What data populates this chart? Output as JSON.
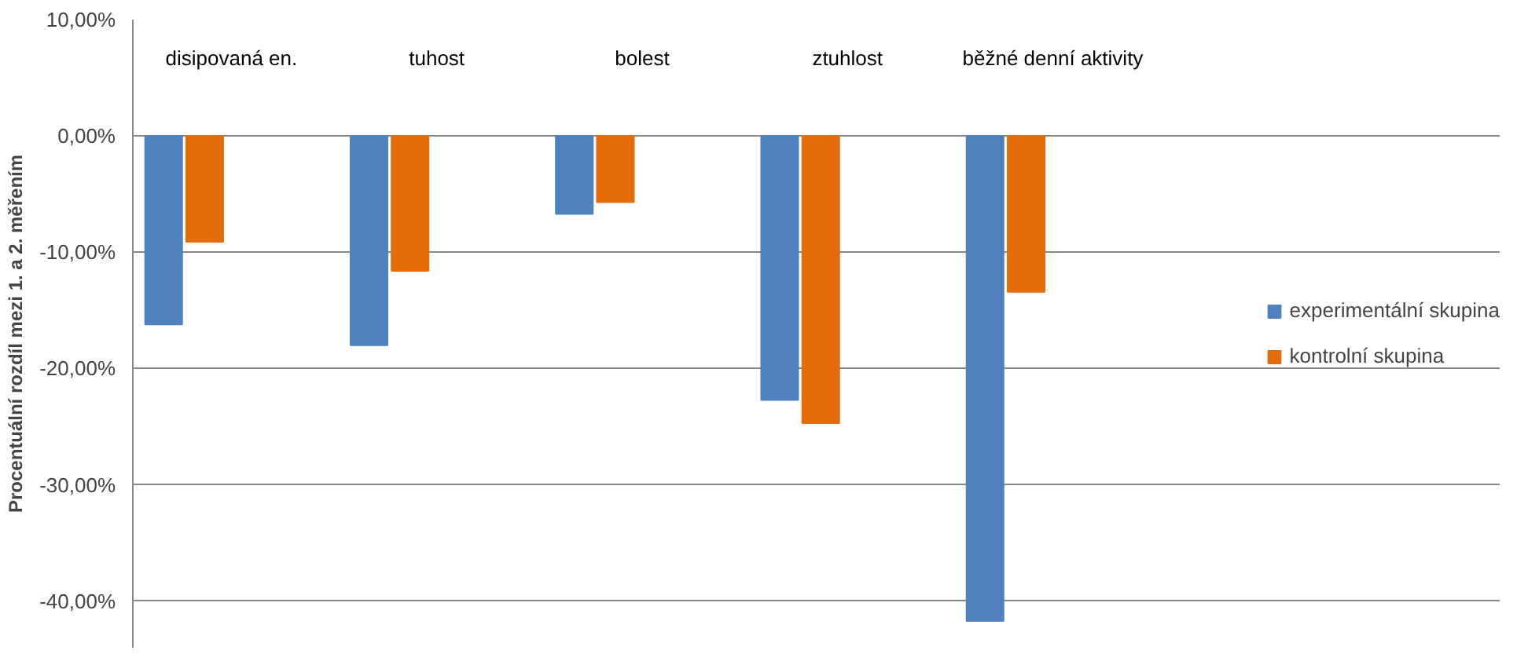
{
  "chart_data": {
    "type": "bar",
    "ylabel": "Procentuální rozdíl mezi 1. a 2. měřením",
    "categories": [
      "disipovaná en.",
      "tuhost",
      "bolest",
      "ztuhlost",
      "běžné denní aktivity"
    ],
    "series": [
      {
        "name": "experimentální skupina",
        "color": "#4f81bd",
        "values": [
          -16.2,
          -18.0,
          -6.7,
          -22.7,
          -41.7
        ]
      },
      {
        "name": "kontrolní skupina",
        "color": "#e46c0a",
        "values": [
          -9.1,
          -11.6,
          -5.7,
          -24.7,
          -13.4
        ]
      }
    ],
    "ylim": [
      -44,
      10
    ],
    "yticks": [
      {
        "value": 10,
        "label": "10,00%"
      },
      {
        "value": 0,
        "label": "0,00%"
      },
      {
        "value": -10,
        "label": "-10,00%"
      },
      {
        "value": -20,
        "label": "-20,00%"
      },
      {
        "value": -30,
        "label": "-30,00%"
      },
      {
        "value": -40,
        "label": "-40,00%"
      }
    ],
    "grid": "y",
    "legend": "right"
  }
}
